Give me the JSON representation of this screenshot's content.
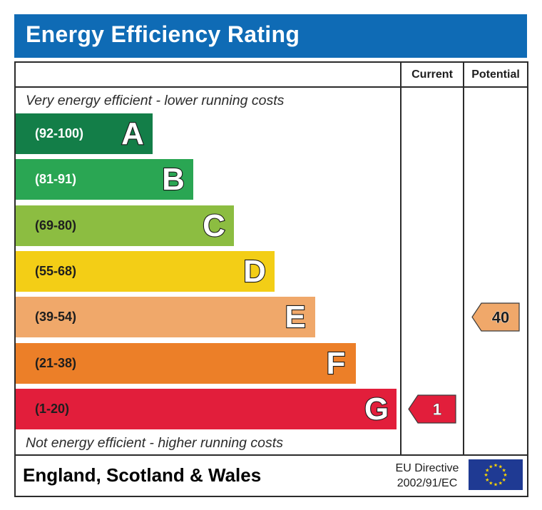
{
  "header": {
    "title": "Energy Efficiency Rating"
  },
  "columns": {
    "current": "Current",
    "potential": "Potential"
  },
  "notes": {
    "top": "Very energy efficient - lower running costs",
    "bottom": "Not energy efficient - higher running costs"
  },
  "footer": {
    "country": "England, Scotland & Wales",
    "directive_line1": "EU Directive",
    "directive_line2": "2002/91/EC"
  },
  "chart_data": {
    "type": "bar",
    "title": "Energy Efficiency Rating",
    "bands": [
      {
        "letter": "A",
        "range": "(92-100)",
        "min": 92,
        "max": 100,
        "color": "#137e48",
        "range_color": "#ffffff"
      },
      {
        "letter": "B",
        "range": "(81-91)",
        "min": 81,
        "max": 91,
        "color": "#2aa653",
        "range_color": "#ffffff"
      },
      {
        "letter": "C",
        "range": "(69-80)",
        "min": 69,
        "max": 80,
        "color": "#8cbd41",
        "range_color": "#1e1e1e"
      },
      {
        "letter": "D",
        "range": "(55-68)",
        "min": 55,
        "max": 68,
        "color": "#f3ce16",
        "range_color": "#1e1e1e"
      },
      {
        "letter": "E",
        "range": "(39-54)",
        "min": 39,
        "max": 54,
        "color": "#f0a86a",
        "range_color": "#1e1e1e"
      },
      {
        "letter": "F",
        "range": "(21-38)",
        "min": 21,
        "max": 38,
        "color": "#ec7f28",
        "range_color": "#1e1e1e"
      },
      {
        "letter": "G",
        "range": "(1-20)",
        "min": 1,
        "max": 20,
        "color": "#e21e3b",
        "range_color": "#1e1e1e"
      }
    ],
    "current": {
      "value": 1,
      "label": "1",
      "band": "G",
      "color": "#e21e3b",
      "text_color": "#ffffff"
    },
    "potential": {
      "value": 40,
      "label": "40",
      "band": "E",
      "color": "#f0a86a",
      "text_color": "#1e1e1e"
    }
  }
}
